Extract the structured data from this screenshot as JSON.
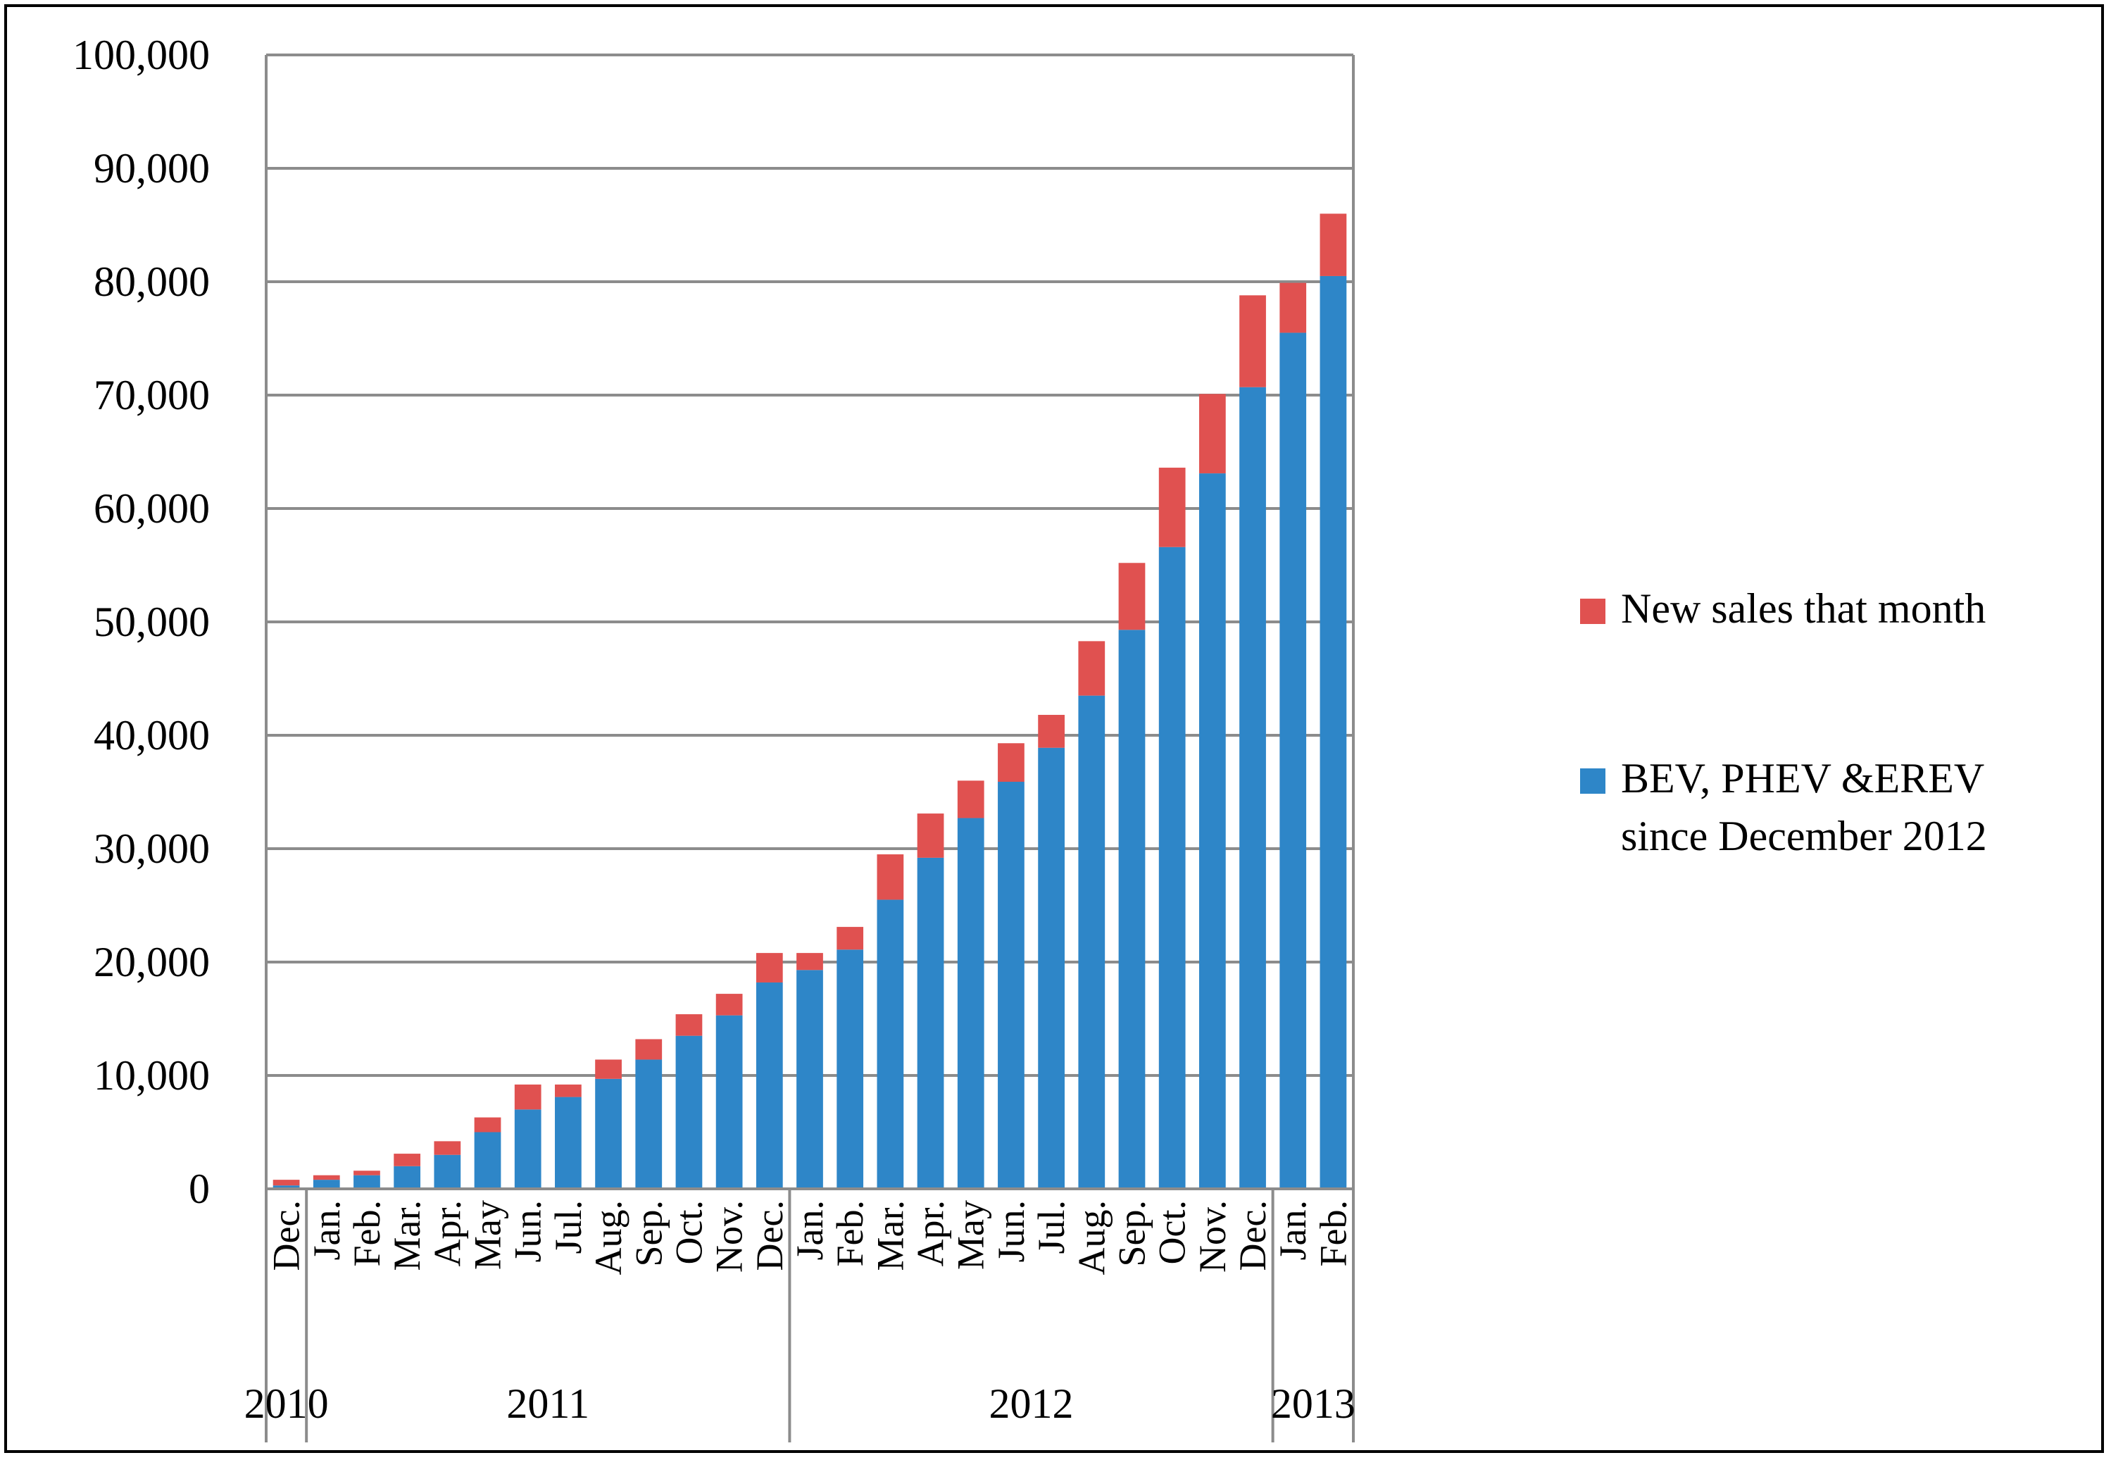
{
  "chart_data": {
    "type": "bar",
    "stacked": true,
    "categories": [
      "Dec.",
      "Jan.",
      "Feb.",
      "Mar.",
      "Apr.",
      "May",
      "Jun.",
      "Jul.",
      "Aug.",
      "Sep.",
      "Oct.",
      "Nov.",
      "Dec.",
      "Jan.",
      "Feb.",
      "Mar.",
      "Apr.",
      "May",
      "Jun.",
      "Jul.",
      "Aug.",
      "Sep.",
      "Oct.",
      "Nov.",
      "Dec.",
      "Jan.",
      "Feb."
    ],
    "years": [
      {
        "label": "2010",
        "start": 0,
        "end": 0
      },
      {
        "label": "2011",
        "start": 1,
        "end": 12
      },
      {
        "label": "2012",
        "start": 13,
        "end": 24
      },
      {
        "label": "2013",
        "start": 25,
        "end": 26
      }
    ],
    "series": [
      {
        "name": "BEV, PHEV &EREV since December 2012",
        "color": "#2e86c8",
        "values": [
          300,
          800,
          1200,
          2000,
          3000,
          5000,
          7000,
          8100,
          9700,
          11400,
          13500,
          15300,
          18200,
          19300,
          21100,
          25500,
          29200,
          32700,
          35900,
          38900,
          43500,
          49300,
          56600,
          63100,
          70700,
          75500,
          80500
        ]
      },
      {
        "name": "New sales that month",
        "color": "#e05150",
        "values": [
          500,
          400,
          400,
          1100,
          1200,
          1300,
          2200,
          1100,
          1700,
          1800,
          1900,
          1900,
          2600,
          1500,
          2000,
          4000,
          3900,
          3300,
          3400,
          2900,
          4800,
          5900,
          7000,
          7000,
          8100,
          4400,
          5500
        ]
      }
    ],
    "ylim": [
      0,
      100000
    ],
    "yticks": [
      "0",
      "10,000",
      "20,000",
      "30,000",
      "40,000",
      "50,000",
      "60,000",
      "70,000",
      "80,000",
      "90,000",
      "100,000"
    ],
    "grid": true,
    "legend_position": "right"
  }
}
